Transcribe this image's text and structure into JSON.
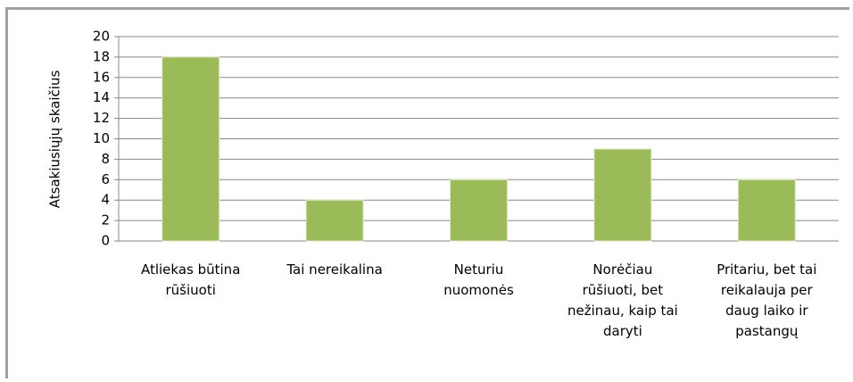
{
  "chart_data": {
    "type": "bar",
    "y_label": "Atsakiusiųjų skaičius",
    "categories": [
      "Atliekas būtina\nrūšiuoti",
      "Tai nereikalina",
      "Neturiu\nnuomonės",
      "Norėčiau\nrūšiuoti, bet\nnežinau, kaip tai\ndaryti",
      "Pritariu, bet tai\nreikalauja per\ndaug laiko ir\npastangų"
    ],
    "values": [
      18,
      4,
      6,
      9,
      6
    ],
    "color": "#9bbb59",
    "ylim": [
      0,
      20
    ],
    "yticks": [
      0,
      2,
      4,
      6,
      8,
      10,
      12,
      14,
      16,
      18,
      20
    ],
    "grid": true
  }
}
